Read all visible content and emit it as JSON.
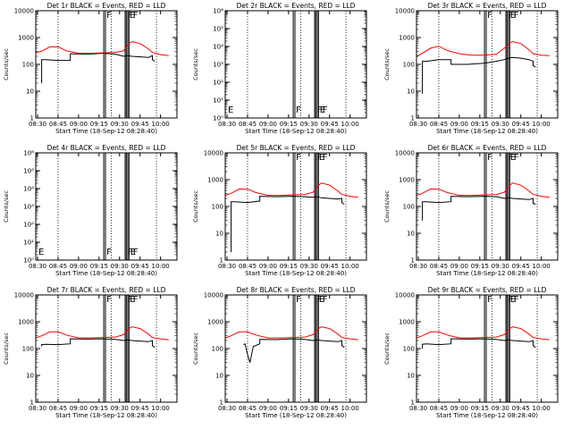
{
  "figure": {
    "common_xlabel": "Start Time (18-Sep-12 08:28:40)",
    "common_ylabel": "Counts/sec",
    "x_tick_labels": [
      "08:30",
      "08:45",
      "09:00",
      "09:15",
      "09:30",
      "09:45",
      "10:00"
    ],
    "x_tick_hours": [
      8.5,
      8.75,
      9.0,
      9.25,
      9.5,
      9.75,
      10.0
    ],
    "xlim_hours": [
      8.4778,
      10.2
    ],
    "dotted_lines_hours": [
      8.75,
      9.4,
      9.95
    ],
    "solid_lines_hours": [
      9.307,
      9.328,
      9.568,
      9.582,
      9.6,
      9.615
    ],
    "colors": {
      "events": "#000000",
      "lld": "#ff0000",
      "axes": "#000000"
    }
  },
  "chart_data": [
    {
      "type": "line",
      "panel": "det1r",
      "title": "Det 1r BLACK = Events, RED = LLD",
      "xlabel": "Start Time (18-Sep-12 08:28:40)",
      "ylabel": "Counts/sec",
      "yscale": "log",
      "ylim": [
        1,
        10000
      ],
      "ytick_labels": [
        "1",
        "10",
        "100",
        "1000",
        "10000"
      ],
      "flags": [
        {
          "x": 9.33,
          "text": "F"
        },
        {
          "x": 9.59,
          "text": "FF"
        },
        {
          "x": 9.61,
          "text": "E"
        }
      ],
      "series": [
        {
          "name": "Events",
          "color": "#000000",
          "x": [
            8.55,
            8.55,
            8.6,
            8.75,
            8.9,
            8.9,
            9.1,
            9.3,
            9.45,
            9.55,
            9.6,
            9.65,
            9.75,
            9.85,
            9.9,
            9.9,
            9.93
          ],
          "y": [
            20,
            150,
            150,
            140,
            140,
            250,
            240,
            260,
            240,
            200,
            210,
            200,
            190,
            180,
            210,
            150,
            130
          ]
        },
        {
          "name": "LLD",
          "color": "#ff0000",
          "x": [
            8.48,
            8.55,
            8.65,
            8.75,
            8.85,
            9.0,
            9.15,
            9.3,
            9.45,
            9.55,
            9.6,
            9.65,
            9.75,
            9.85,
            9.9,
            10.0,
            10.1
          ],
          "y": [
            280,
            310,
            450,
            450,
            320,
            260,
            260,
            270,
            280,
            320,
            560,
            700,
            600,
            380,
            280,
            230,
            210
          ]
        }
      ]
    },
    {
      "type": "line",
      "panel": "det2r",
      "title": "Det 2r BLACK = Events, RED = LLD",
      "xlabel": "Start Time (18-Sep-12 08:28:40)",
      "ylabel": "Counts/sec",
      "yscale": "log",
      "ylim": [
        1,
        1000000
      ],
      "ytick_labels": [
        "10⁰",
        "10¹",
        "10²",
        "10³",
        "10⁴",
        "10⁵",
        "10⁶"
      ],
      "flags": [
        {
          "x": 8.5,
          "text": "E"
        },
        {
          "x": 9.33,
          "text": "F"
        },
        {
          "x": 9.59,
          "text": "FF"
        },
        {
          "x": 9.62,
          "text": "E"
        }
      ],
      "series": []
    },
    {
      "type": "line",
      "panel": "det3r",
      "title": "Det 3r BLACK = Events, RED = LLD",
      "xlabel": "Start Time (18-Sep-12 08:28:40)",
      "ylabel": "Counts/sec",
      "yscale": "log",
      "ylim": [
        1,
        10000
      ],
      "ytick_labels": [
        "1",
        "10",
        "100",
        "1000",
        "10000"
      ],
      "flags": [
        {
          "x": 9.33,
          "text": "F"
        },
        {
          "x": 9.59,
          "text": "FF"
        },
        {
          "x": 9.61,
          "text": "E"
        }
      ],
      "series": [
        {
          "name": "Events",
          "color": "#000000",
          "x": [
            8.55,
            8.55,
            8.6,
            8.75,
            8.9,
            8.9,
            9.1,
            9.3,
            9.45,
            9.55,
            9.6,
            9.65,
            9.75,
            9.85,
            9.9,
            9.9,
            9.93
          ],
          "y": [
            8,
            130,
            130,
            150,
            150,
            100,
            100,
            110,
            130,
            150,
            170,
            180,
            170,
            150,
            130,
            90,
            80
          ]
        },
        {
          "name": "LLD",
          "color": "#ff0000",
          "x": [
            8.48,
            8.55,
            8.65,
            8.75,
            8.85,
            9.0,
            9.15,
            9.3,
            9.45,
            9.55,
            9.6,
            9.65,
            9.75,
            9.85,
            9.9,
            10.0,
            10.1
          ],
          "y": [
            200,
            260,
            400,
            480,
            330,
            250,
            220,
            220,
            240,
            400,
            600,
            700,
            600,
            350,
            250,
            220,
            210
          ]
        }
      ]
    },
    {
      "type": "line",
      "panel": "det4r",
      "title": "Det 4r BLACK = Events, RED = LLD",
      "xlabel": "Start Time (18-Sep-12 08:28:40)",
      "ylabel": "Counts/sec",
      "yscale": "log",
      "ylim": [
        1,
        1000000
      ],
      "ytick_labels": [
        "10⁰",
        "10¹",
        "10²",
        "10³",
        "10⁴",
        "10⁵",
        "10⁶"
      ],
      "flags": [
        {
          "x": 8.5,
          "text": "E"
        },
        {
          "x": 9.33,
          "text": "F"
        },
        {
          "x": 9.59,
          "text": "FF"
        },
        {
          "x": 9.62,
          "text": "E"
        }
      ],
      "series": []
    },
    {
      "type": "line",
      "panel": "det5r",
      "title": "Det 5r BLACK = Events, RED = LLD",
      "xlabel": "Start Time (18-Sep-12 08:28:40)",
      "ylabel": "Counts/sec",
      "yscale": "log",
      "ylim": [
        1,
        10000
      ],
      "ytick_labels": [
        "1",
        "10",
        "100",
        "1000",
        "10000"
      ],
      "flags": [
        {
          "x": 9.33,
          "text": "F"
        },
        {
          "x": 9.59,
          "text": "FF"
        },
        {
          "x": 9.61,
          "text": "E"
        }
      ],
      "series": [
        {
          "name": "Events",
          "color": "#000000",
          "x": [
            8.55,
            8.55,
            8.6,
            8.75,
            8.9,
            8.9,
            9.1,
            9.3,
            9.45,
            9.55,
            9.6,
            9.65,
            9.75,
            9.85,
            9.9,
            9.9,
            9.93
          ],
          "y": [
            2,
            150,
            150,
            140,
            160,
            240,
            230,
            240,
            230,
            220,
            230,
            210,
            200,
            190,
            200,
            140,
            120
          ]
        },
        {
          "name": "LLD",
          "color": "#ff0000",
          "x": [
            8.48,
            8.55,
            8.65,
            8.75,
            8.85,
            9.0,
            9.15,
            9.3,
            9.45,
            9.55,
            9.6,
            9.65,
            9.75,
            9.85,
            9.9,
            10.0,
            10.1
          ],
          "y": [
            260,
            310,
            450,
            440,
            330,
            260,
            260,
            270,
            280,
            340,
            560,
            750,
            620,
            380,
            280,
            240,
            220
          ]
        }
      ]
    },
    {
      "type": "line",
      "panel": "det6r",
      "title": "Det 6r BLACK = Events, RED = LLD",
      "xlabel": "Start Time (18-Sep-12 08:28:40)",
      "ylabel": "Counts/sec",
      "yscale": "log",
      "ylim": [
        1,
        10000
      ],
      "ytick_labels": [
        "1",
        "10",
        "100",
        "1000",
        "10000"
      ],
      "flags": [
        {
          "x": 9.33,
          "text": "F"
        },
        {
          "x": 9.59,
          "text": "FF"
        },
        {
          "x": 9.61,
          "text": "E"
        }
      ],
      "series": [
        {
          "name": "Events",
          "color": "#000000",
          "x": [
            8.55,
            8.55,
            8.6,
            8.75,
            8.9,
            8.9,
            9.1,
            9.3,
            9.45,
            9.55,
            9.6,
            9.65,
            9.75,
            9.85,
            9.9,
            9.9,
            9.93
          ],
          "y": [
            30,
            150,
            150,
            140,
            150,
            240,
            230,
            240,
            230,
            200,
            210,
            200,
            190,
            180,
            200,
            130,
            120
          ]
        },
        {
          "name": "LLD",
          "color": "#ff0000",
          "x": [
            8.48,
            8.55,
            8.65,
            8.75,
            8.85,
            9.0,
            9.15,
            9.3,
            9.45,
            9.55,
            9.6,
            9.65,
            9.75,
            9.85,
            9.9,
            10.0,
            10.1
          ],
          "y": [
            260,
            310,
            450,
            440,
            330,
            260,
            260,
            270,
            280,
            340,
            560,
            750,
            620,
            380,
            280,
            240,
            220
          ]
        }
      ]
    },
    {
      "type": "line",
      "panel": "det7r",
      "title": "Det 7r BLACK = Events, RED = LLD",
      "xlabel": "Start Time (18-Sep-12 08:28:40)",
      "ylabel": "Counts/sec",
      "yscale": "log",
      "ylim": [
        1,
        10000
      ],
      "ytick_labels": [
        "1",
        "10",
        "100",
        "1000",
        "10000"
      ],
      "flags": [
        {
          "x": 9.33,
          "text": "F"
        },
        {
          "x": 9.59,
          "text": "FF"
        },
        {
          "x": 9.61,
          "text": "E"
        }
      ],
      "series": [
        {
          "name": "Events",
          "color": "#000000",
          "x": [
            8.55,
            8.55,
            8.6,
            8.75,
            8.9,
            8.9,
            9.1,
            9.3,
            9.45,
            9.55,
            9.6,
            9.65,
            9.75,
            9.85,
            9.9,
            9.9,
            9.93
          ],
          "y": [
            120,
            140,
            145,
            140,
            150,
            230,
            225,
            230,
            220,
            200,
            210,
            200,
            190,
            180,
            200,
            130,
            110
          ]
        },
        {
          "name": "LLD",
          "color": "#ff0000",
          "x": [
            8.48,
            8.55,
            8.65,
            8.75,
            8.85,
            9.0,
            9.15,
            9.3,
            9.45,
            9.55,
            9.6,
            9.65,
            9.75,
            9.85,
            9.9,
            10.0,
            10.1
          ],
          "y": [
            250,
            300,
            420,
            420,
            320,
            250,
            250,
            260,
            270,
            330,
            520,
            650,
            560,
            350,
            260,
            230,
            210
          ]
        }
      ]
    },
    {
      "type": "line",
      "panel": "det8r",
      "title": "Det 8r BLACK = Events, RED = LLD",
      "xlabel": "Start Time (18-Sep-12 08:28:40)",
      "ylabel": "Counts/sec",
      "yscale": "log",
      "ylim": [
        1,
        10000
      ],
      "ytick_labels": [
        "1",
        "10",
        "100",
        "1000",
        "10000"
      ],
      "flags": [
        {
          "x": 9.33,
          "text": "F"
        },
        {
          "x": 9.59,
          "text": "FF"
        },
        {
          "x": 9.61,
          "text": "E"
        }
      ],
      "series": [
        {
          "name": "Events",
          "color": "#000000",
          "x": [
            8.7,
            8.72,
            8.75,
            8.78,
            8.82,
            8.9,
            8.9,
            9.1,
            9.3,
            9.45,
            9.55,
            9.6,
            9.65,
            9.75,
            9.85,
            9.9,
            9.9,
            9.93
          ],
          "y": [
            140,
            150,
            60,
            30,
            120,
            150,
            220,
            215,
            230,
            220,
            200,
            210,
            200,
            190,
            180,
            200,
            130,
            110
          ]
        },
        {
          "name": "LLD",
          "color": "#ff0000",
          "x": [
            8.48,
            8.55,
            8.65,
            8.75,
            8.85,
            9.0,
            9.15,
            9.3,
            9.45,
            9.55,
            9.6,
            9.65,
            9.75,
            9.85,
            9.9,
            10.0,
            10.1
          ],
          "y": [
            250,
            300,
            420,
            420,
            320,
            250,
            250,
            260,
            270,
            330,
            520,
            650,
            560,
            350,
            260,
            230,
            210
          ]
        }
      ]
    },
    {
      "type": "line",
      "panel": "det9r",
      "title": "Det 9r BLACK = Events, RED = LLD",
      "xlabel": "Start Time (18-Sep-12 08:28:40)",
      "ylabel": "Counts/sec",
      "yscale": "log",
      "ylim": [
        1,
        10000
      ],
      "ytick_labels": [
        "1",
        "10",
        "100",
        "1000",
        "10000"
      ],
      "flags": [
        {
          "x": 9.33,
          "text": "F"
        },
        {
          "x": 9.59,
          "text": "FF"
        },
        {
          "x": 9.61,
          "text": "E"
        }
      ],
      "series": [
        {
          "name": "Events",
          "color": "#000000",
          "x": [
            8.55,
            8.55,
            8.6,
            8.75,
            8.9,
            8.9,
            9.1,
            9.3,
            9.45,
            9.55,
            9.6,
            9.65,
            9.75,
            9.85,
            9.9,
            9.9,
            9.93
          ],
          "y": [
            100,
            145,
            150,
            140,
            150,
            230,
            225,
            230,
            220,
            200,
            210,
            200,
            190,
            180,
            200,
            130,
            110
          ]
        },
        {
          "name": "LLD",
          "color": "#ff0000",
          "x": [
            8.48,
            8.55,
            8.65,
            8.75,
            8.85,
            9.0,
            9.15,
            9.3,
            9.45,
            9.55,
            9.6,
            9.65,
            9.75,
            9.85,
            9.9,
            10.0,
            10.1
          ],
          "y": [
            250,
            300,
            420,
            420,
            320,
            250,
            250,
            260,
            270,
            330,
            520,
            650,
            560,
            350,
            260,
            230,
            210
          ]
        }
      ]
    }
  ]
}
